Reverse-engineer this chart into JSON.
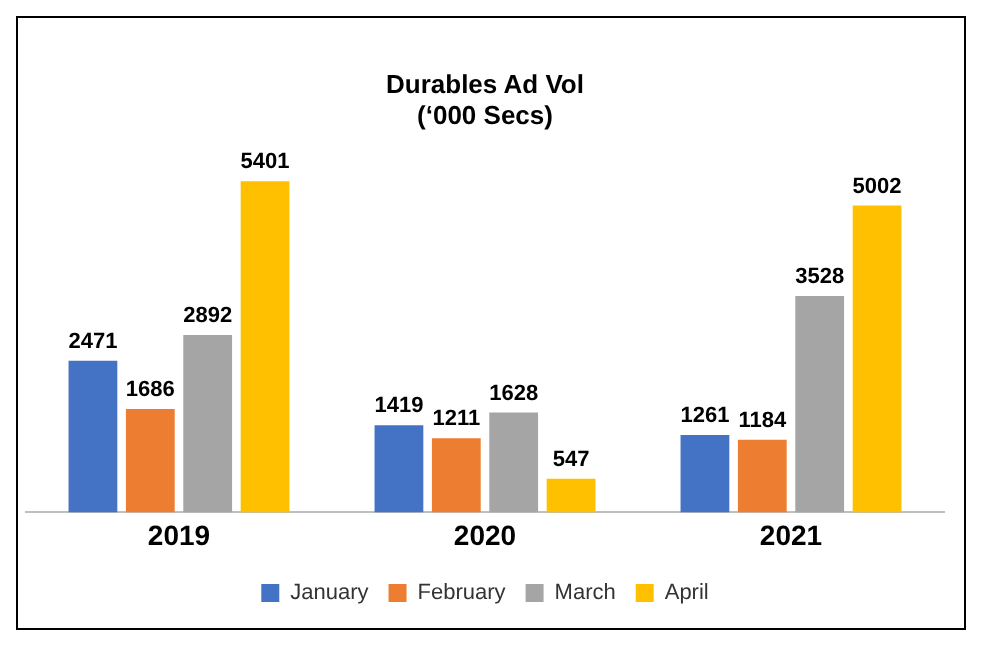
{
  "chart_data": {
    "type": "bar",
    "title": "Durables Ad Vol",
    "subtitle": "(‘000 Secs)",
    "categories": [
      "2019",
      "2020",
      "2021"
    ],
    "series": [
      {
        "name": "January",
        "color": "#4472c4",
        "values": [
          2471,
          1419,
          1261
        ]
      },
      {
        "name": "February",
        "color": "#ed7d31",
        "values": [
          1686,
          1211,
          1184
        ]
      },
      {
        "name": "March",
        "color": "#a5a5a5",
        "values": [
          2892,
          1628,
          3528
        ]
      },
      {
        "name": "April",
        "color": "#ffc000",
        "values": [
          5401,
          547,
          5002
        ]
      }
    ],
    "data_labels": true,
    "legend": "bottom",
    "grid": false
  }
}
